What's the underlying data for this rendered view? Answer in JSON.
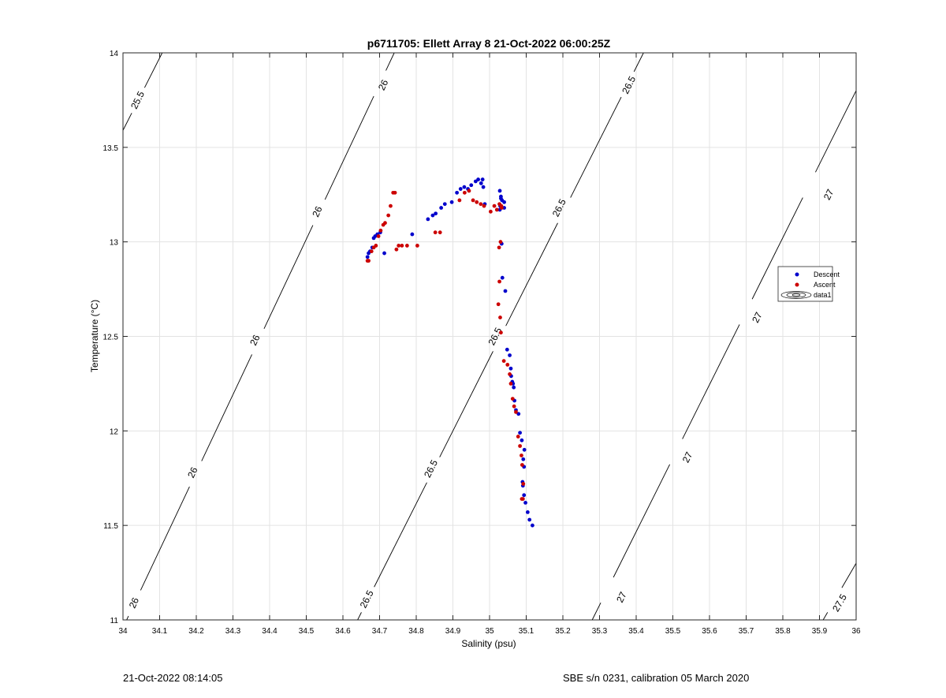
{
  "chart_data": {
    "type": "scatter",
    "title": "p6711705: Ellett Array 8 21-Oct-2022 06:00:25Z",
    "xlabel": "Salinity (psu)",
    "ylabel": "Temperature (°C)",
    "xlim": [
      34,
      36
    ],
    "ylim": [
      11,
      14
    ],
    "xticks": [
      "34",
      "34.1",
      "34.2",
      "34.3",
      "34.4",
      "34.5",
      "34.6",
      "34.7",
      "34.8",
      "34.9",
      "35",
      "35.1",
      "35.2",
      "35.3",
      "35.4",
      "35.5",
      "35.6",
      "35.7",
      "35.8",
      "35.9",
      "36"
    ],
    "yticks": [
      "11",
      "11.5",
      "12",
      "12.5",
      "13",
      "13.5",
      "14"
    ],
    "grid": true,
    "legend_position": "right",
    "legend": [
      "Descent",
      "Ascent",
      "data1"
    ],
    "series": [
      {
        "name": "Descent",
        "color": "#0000cc",
        "x": [
          35.117,
          35.109,
          35.104,
          35.098,
          35.094,
          35.091,
          35.09,
          35.094,
          35.092,
          35.095,
          35.088,
          35.083,
          35.079,
          35.072,
          35.068,
          35.066,
          35.062,
          35.064,
          35.059,
          35.058,
          35.055,
          35.048,
          35.043,
          35.035,
          35.033,
          35.04,
          35.034,
          35.031,
          35.028,
          35.031,
          35.029,
          35.04,
          35.028,
          34.987,
          34.983,
          34.981,
          34.977,
          34.969,
          34.962,
          34.95,
          34.941,
          34.931,
          34.921,
          34.911,
          34.897,
          34.878,
          34.868,
          34.853,
          34.845,
          34.832,
          34.789,
          34.713,
          34.702,
          34.694,
          34.688,
          34.684,
          34.68,
          34.674,
          34.67,
          34.667
        ],
        "y": [
          11.5,
          11.53,
          11.57,
          11.62,
          11.66,
          11.71,
          11.73,
          11.81,
          11.85,
          11.9,
          11.95,
          11.99,
          12.09,
          12.11,
          12.16,
          12.23,
          12.26,
          12.25,
          12.29,
          12.33,
          12.4,
          12.43,
          12.74,
          12.81,
          12.99,
          13.18,
          13.22,
          13.24,
          13.27,
          13.23,
          13.19,
          13.21,
          13.17,
          13.2,
          13.29,
          13.33,
          13.31,
          13.33,
          13.32,
          13.3,
          13.28,
          13.29,
          13.28,
          13.26,
          13.21,
          13.2,
          13.18,
          13.15,
          13.14,
          13.12,
          13.04,
          12.94,
          13.05,
          13.04,
          13.03,
          13.02,
          12.97,
          12.95,
          12.94,
          12.92
        ]
      },
      {
        "name": "Ascent",
        "color": "#cc0000",
        "x": [
          35.088,
          35.091,
          35.092,
          35.089,
          35.087,
          35.083,
          35.078,
          35.072,
          35.067,
          35.063,
          35.058,
          35.055,
          35.049,
          35.039,
          35.031,
          35.029,
          35.024,
          35.027,
          35.026,
          35.03,
          35.033,
          35.027,
          35.032,
          35.02,
          35.013,
          35.003,
          34.985,
          34.976,
          34.965,
          34.955,
          34.944,
          34.932,
          34.918,
          34.852,
          34.865,
          34.803,
          34.775,
          34.761,
          34.752,
          34.746,
          34.742,
          34.737,
          34.73,
          34.724,
          34.715,
          34.71,
          34.703,
          34.697,
          34.69,
          34.684,
          34.678,
          34.67,
          34.667
        ],
        "y": [
          11.64,
          11.64,
          11.72,
          11.82,
          11.87,
          11.92,
          11.97,
          12.1,
          12.13,
          12.17,
          12.25,
          12.3,
          12.35,
          12.37,
          12.52,
          12.6,
          12.67,
          12.79,
          12.97,
          13.0,
          13.18,
          13.2,
          13.19,
          13.17,
          13.19,
          13.16,
          13.19,
          13.2,
          13.21,
          13.22,
          13.27,
          13.26,
          13.22,
          13.05,
          13.05,
          12.98,
          12.98,
          12.98,
          12.98,
          12.96,
          13.26,
          13.26,
          13.19,
          13.14,
          13.1,
          13.09,
          13.06,
          13.03,
          12.98,
          12.97,
          12.95,
          12.9,
          12.9
        ]
      }
    ],
    "contours": [
      {
        "label": "25.5",
        "points": [
          [
            34.0,
            13.59
          ],
          [
            34.107,
            14.0
          ]
        ],
        "labels_at": [
          [
            34.04,
            13.75
          ]
        ]
      },
      {
        "label": "26",
        "points": [
          [
            34.01,
            11.0
          ],
          [
            34.74,
            14.0
          ]
        ],
        "labels_at": [
          [
            34.03,
            11.09
          ],
          [
            34.19,
            11.78
          ],
          [
            34.36,
            12.48
          ],
          [
            34.53,
            13.16
          ],
          [
            34.71,
            13.83
          ]
        ]
      },
      {
        "label": "26.5",
        "points": [
          [
            34.64,
            11.0
          ],
          [
            35.42,
            14.0
          ]
        ],
        "labels_at": [
          [
            34.665,
            11.11
          ],
          [
            34.84,
            11.8
          ],
          [
            35.015,
            12.5
          ],
          [
            35.19,
            13.18
          ],
          [
            35.38,
            13.83
          ]
        ]
      },
      {
        "label": "27",
        "points": [
          [
            35.28,
            11.0
          ],
          [
            36.0,
            13.8
          ]
        ],
        "labels_at": [
          [
            35.36,
            11.12
          ],
          [
            35.54,
            11.86
          ],
          [
            35.73,
            12.6
          ],
          [
            35.925,
            13.25
          ]
        ]
      },
      {
        "label": "27.5",
        "points": [
          [
            35.91,
            11.0
          ],
          [
            36.0,
            11.3
          ]
        ],
        "labels_at": [
          [
            35.955,
            11.09
          ]
        ]
      }
    ]
  },
  "footer": {
    "left": "21-Oct-2022 08:14:05",
    "right": "SBE s/n 0231, calibration 05 March 2020"
  }
}
